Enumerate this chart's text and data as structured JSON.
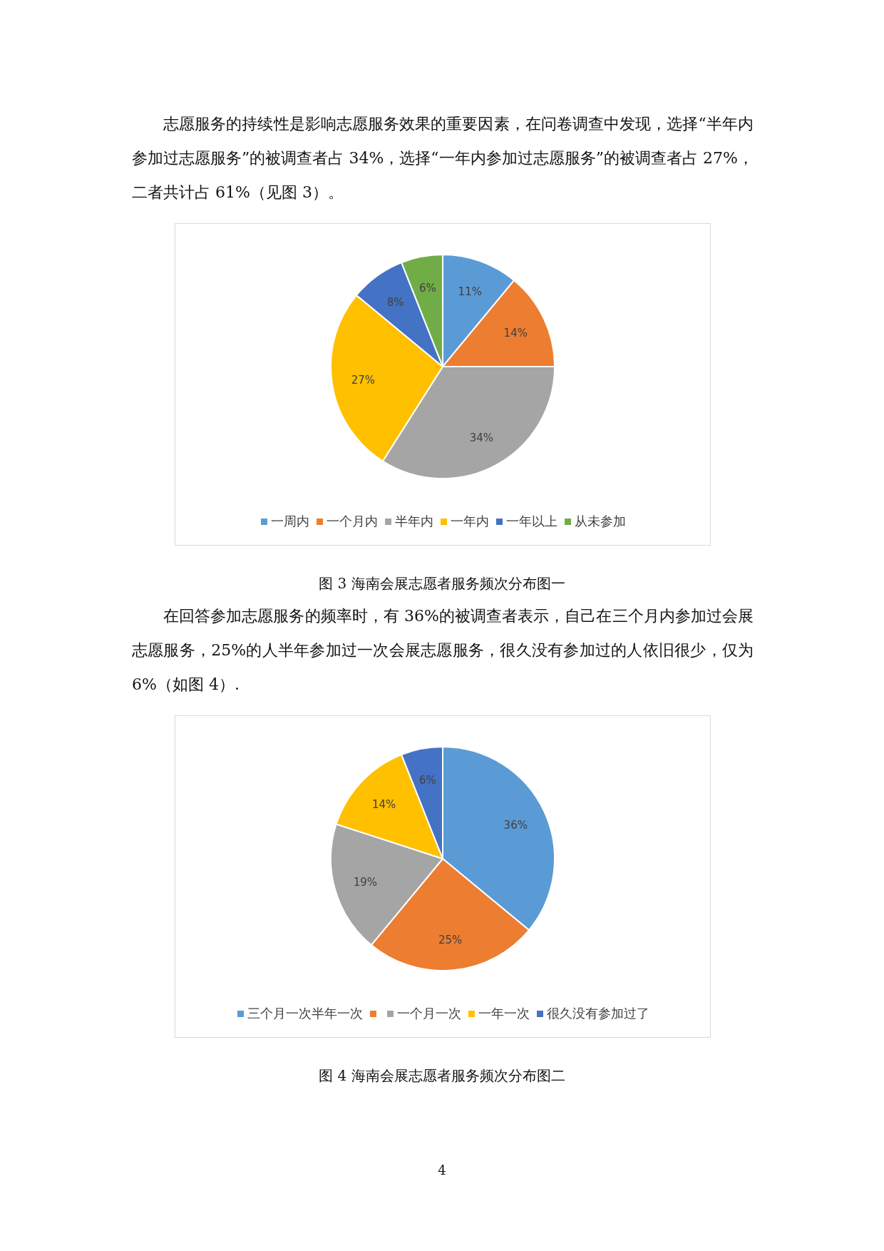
{
  "chart_data": [
    {
      "type": "pie",
      "title": "图 3 海南会展志愿者服务频次分布图一",
      "categories": [
        "一周内",
        "一个月内",
        "半年内",
        "一年内",
        "一年以上",
        "从未参加"
      ],
      "values": [
        11,
        14,
        34,
        27,
        8,
        6
      ],
      "value_labels": [
        "11%",
        "14%",
        "34%",
        "27%",
        "8%",
        "6%"
      ],
      "colors": [
        "#5b9bd5",
        "#ed7d31",
        "#a5a5a5",
        "#ffc000",
        "#4472c4",
        "#70ad47"
      ],
      "legend": "bottom",
      "annotations": [
        "志愿服务的持续性是影响志愿服务效果的重要因素，在问卷调查中发现，选择“半年内参加过志愿服务”的被调查者占 34%，选择“一年内参加过志愿服务”的被调查者占 27%，二者共计占 61%（见图 3）。"
      ]
    },
    {
      "type": "pie",
      "title": "图 4 海南会展志愿者服务频次分布图二",
      "categories": [
        "三个月一次半年一次",
        null,
        "一个月一次",
        "一年一次",
        "很久没有参加过了"
      ],
      "values": [
        36,
        25,
        19,
        14,
        6
      ],
      "value_labels": [
        "36%",
        "25%",
        "19%",
        "14%",
        "6%"
      ],
      "colors": [
        "#5b9bd5",
        "#ed7d31",
        "#a5a5a5",
        "#ffc000",
        "#4472c4"
      ],
      "legend": "bottom",
      "annotations": [
        "在回答参加志愿服务的频率时，有 36%的被调查者表示，自己在三个月内参加过会展志愿服务，25%的人半年参加过一次会展志愿服务，很久没有参加过的人依旧很少，仅为 6%（如图 4）.",
        "4"
      ]
    }
  ]
}
